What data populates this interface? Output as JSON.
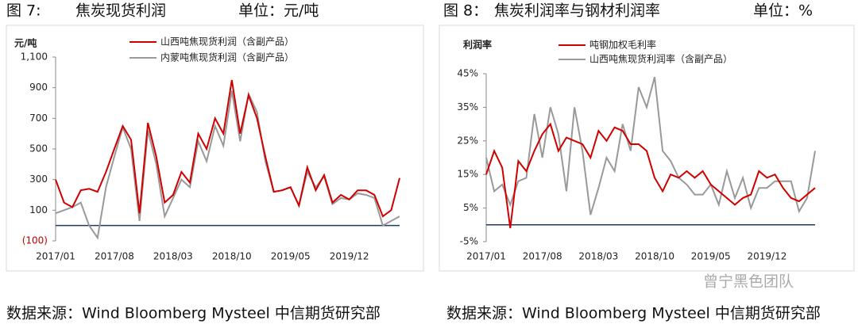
{
  "chart_data": [
    {
      "type": "line",
      "figure": "图 7:",
      "title": "焦炭现货利润",
      "unit": "单位：元/吨",
      "y_label": "元/吨",
      "source": "数据来源：Wind Bloomberg Mysteel 中信期货研究部",
      "x": [
        "2017/01",
        "2017/02",
        "2017/03",
        "2017/04",
        "2017/05",
        "2017/06",
        "2017/07",
        "2017/08",
        "2017/09",
        "2017/10",
        "2017/11",
        "2017/12",
        "2018/01",
        "2018/02",
        "2018/03",
        "2018/04",
        "2018/05",
        "2018/06",
        "2018/07",
        "2018/08",
        "2018/09",
        "2018/10",
        "2018/11",
        "2018/12",
        "2019/01",
        "2019/02",
        "2019/03",
        "2019/04",
        "2019/05",
        "2019/06",
        "2019/07",
        "2019/08",
        "2019/09",
        "2019/10",
        "2019/11",
        "2019/12",
        "2020/01",
        "2020/02",
        "2020/03",
        "2020/04",
        "2020/05",
        "2020/06"
      ],
      "xticks": [
        "2017/01",
        "2017/08",
        "2018/03",
        "2018/10",
        "2019/05",
        "2019/12"
      ],
      "ylim": [
        -100,
        1100
      ],
      "yticks": [
        {
          "value": -100,
          "label": "(100)",
          "color": "#c00000"
        },
        100,
        300,
        500,
        700,
        900,
        {
          "value": 1100,
          "label": "1,100"
        }
      ],
      "series": [
        {
          "name": "山西吨焦现货利润（含副产品）",
          "color": "#d00000",
          "values": [
            300,
            150,
            120,
            230,
            240,
            220,
            350,
            500,
            650,
            560,
            80,
            670,
            450,
            150,
            200,
            350,
            280,
            600,
            500,
            700,
            600,
            950,
            600,
            850,
            700,
            450,
            220,
            230,
            250,
            130,
            380,
            230,
            330,
            150,
            200,
            170,
            230,
            230,
            200,
            60,
            100,
            310
          ]
        },
        {
          "name": "内蒙吨焦现货利润（含副产品）",
          "color": "#999999",
          "values": [
            80,
            100,
            120,
            150,
            0,
            -80,
            250,
            450,
            640,
            500,
            30,
            620,
            400,
            60,
            180,
            300,
            250,
            550,
            420,
            650,
            520,
            880,
            550,
            860,
            740,
            420,
            220,
            230,
            250,
            130,
            350,
            250,
            320,
            140,
            180,
            170,
            210,
            200,
            180,
            0,
            30,
            60
          ]
        }
      ]
    },
    {
      "type": "line",
      "figure": "图 8：",
      "title": "焦炭利润率与钢材利润率",
      "unit": "单位：%",
      "y_label": "利润率",
      "source": "数据来源：Wind Bloomberg Mysteel 中信期货研究部",
      "watermark": "曾宁黑色团队",
      "x": [
        "2017/01",
        "2017/02",
        "2017/03",
        "2017/04",
        "2017/05",
        "2017/06",
        "2017/07",
        "2017/08",
        "2017/09",
        "2017/10",
        "2017/11",
        "2017/12",
        "2018/01",
        "2018/02",
        "2018/03",
        "2018/04",
        "2018/05",
        "2018/06",
        "2018/07",
        "2018/08",
        "2018/09",
        "2018/10",
        "2018/11",
        "2018/12",
        "2019/01",
        "2019/02",
        "2019/03",
        "2019/04",
        "2019/05",
        "2019/06",
        "2019/07",
        "2019/08",
        "2019/09",
        "2019/10",
        "2019/11",
        "2019/12",
        "2020/01",
        "2020/02",
        "2020/03",
        "2020/04",
        "2020/05",
        "2020/06"
      ],
      "xticks": [
        "2017/01",
        "2017/08",
        "2018/03",
        "2018/10",
        "2019/05",
        "2019/12"
      ],
      "ylim": [
        -5,
        45
      ],
      "yticks": [
        {
          "value": -5,
          "label": "-5%"
        },
        {
          "value": 5,
          "label": "5%"
        },
        {
          "value": 15,
          "label": "15%"
        },
        {
          "value": 25,
          "label": "25%"
        },
        {
          "value": 35,
          "label": "35%"
        },
        {
          "value": 45,
          "label": "45%"
        }
      ],
      "series": [
        {
          "name": "吨钢加权毛利率",
          "color": "#d00000",
          "values": [
            15,
            22,
            17,
            -1,
            19,
            16,
            22,
            27,
            30,
            22,
            26,
            25,
            24,
            20,
            28,
            25,
            29,
            28,
            24,
            24,
            22,
            14,
            10,
            15,
            14,
            16,
            14,
            16,
            12,
            10,
            8,
            6,
            8,
            9,
            16,
            14,
            15,
            11,
            8,
            7,
            9,
            11
          ]
        },
        {
          "name": "山西吨焦现货利润率（含副产品）",
          "color": "#999999",
          "values": [
            20,
            10,
            12,
            6,
            13,
            14,
            33,
            20,
            35,
            27,
            10,
            35,
            22,
            3,
            11,
            20,
            16,
            30,
            22,
            41,
            35,
            44,
            22,
            19,
            14,
            12,
            9,
            9,
            12,
            6,
            16,
            8,
            14,
            5,
            11,
            11,
            13,
            13,
            13,
            4,
            8,
            22
          ]
        }
      ]
    }
  ]
}
